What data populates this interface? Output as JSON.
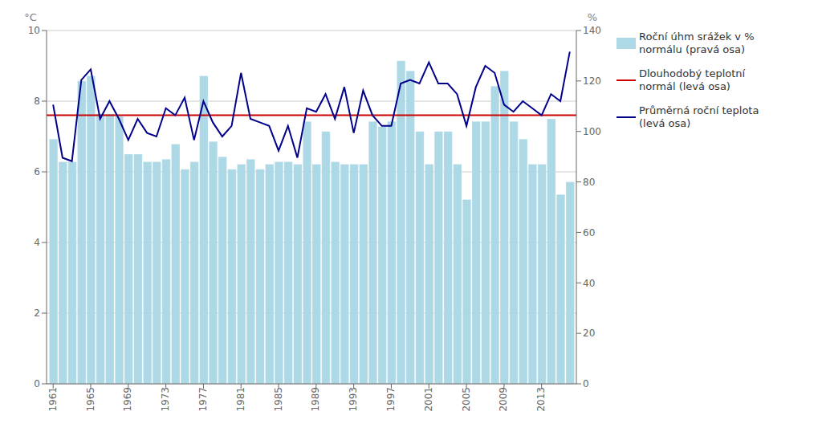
{
  "chart_data": {
    "type": "bar",
    "x": [
      1961,
      1962,
      1963,
      1964,
      1965,
      1966,
      1967,
      1968,
      1969,
      1970,
      1971,
      1972,
      1973,
      1974,
      1975,
      1976,
      1977,
      1978,
      1979,
      1980,
      1981,
      1982,
      1983,
      1984,
      1985,
      1986,
      1987,
      1988,
      1989,
      1990,
      1991,
      1992,
      1993,
      1994,
      1995,
      1996,
      1997,
      1998,
      1999,
      2000,
      2001,
      2002,
      2003,
      2004,
      2005,
      2006,
      2007,
      2008,
      2009,
      2010,
      2011,
      2012,
      2013,
      2014,
      2015,
      2016
    ],
    "series": [
      {
        "name": "Roční úhm srážek v %\nnormálu (pravá osa)",
        "type": "bar",
        "axis": "y2",
        "color": "#ADD8E6",
        "values": [
          97,
          88,
          88,
          120,
          122,
          107,
          107,
          106,
          91,
          91,
          88,
          88,
          89,
          95,
          85,
          88,
          122,
          96,
          90,
          85,
          87,
          89,
          85,
          87,
          88,
          88,
          87,
          104,
          87,
          100,
          88,
          87,
          87,
          87,
          104,
          102,
          104,
          128,
          124,
          100,
          87,
          100,
          100,
          87,
          73,
          104,
          104,
          118,
          124,
          104,
          97,
          87,
          87,
          105,
          75,
          80
        ]
      },
      {
        "name": "Průměrná roční teplota\n(levá osa)",
        "type": "line",
        "color": "#00008B",
        "values": [
          7.9,
          6.4,
          6.3,
          8.6,
          8.9,
          7.5,
          8.0,
          7.5,
          6.9,
          7.5,
          7.1,
          7.0,
          7.8,
          7.6,
          8.1,
          6.9,
          8.0,
          7.4,
          7.0,
          7.3,
          8.8,
          7.5,
          7.4,
          7.3,
          6.6,
          7.3,
          6.4,
          7.8,
          7.7,
          8.2,
          7.5,
          8.4,
          7.1,
          8.3,
          7.6,
          7.3,
          7.3,
          8.5,
          8.6,
          8.5,
          9.1,
          8.5,
          8.5,
          8.2,
          7.3,
          8.4,
          9.0,
          8.8,
          7.9,
          7.7,
          8.0,
          7.8,
          7.6,
          8.2,
          8.0,
          9.4
        ]
      }
    ],
    "reference_line": {
      "name": "Dlouhodobý teplotní\nnormál (levá osa)",
      "value": 7.6,
      "color": "#CC0000"
    },
    "ylabel": "°C",
    "y2label": "%",
    "xlim": [
      1960.3,
      2016.7
    ],
    "xticks": [
      1961,
      1965,
      1969,
      1973,
      1977,
      1981,
      1985,
      1989,
      1993,
      1997,
      2001,
      2005,
      2009,
      2013
    ],
    "ylim": [
      0,
      10
    ],
    "yticks": [
      0,
      2,
      4,
      6,
      8,
      10
    ],
    "y2lim": [
      0,
      140
    ],
    "y2ticks": [
      0,
      20,
      40,
      60,
      80,
      100,
      120,
      140
    ],
    "grid": true,
    "legend": "right"
  }
}
